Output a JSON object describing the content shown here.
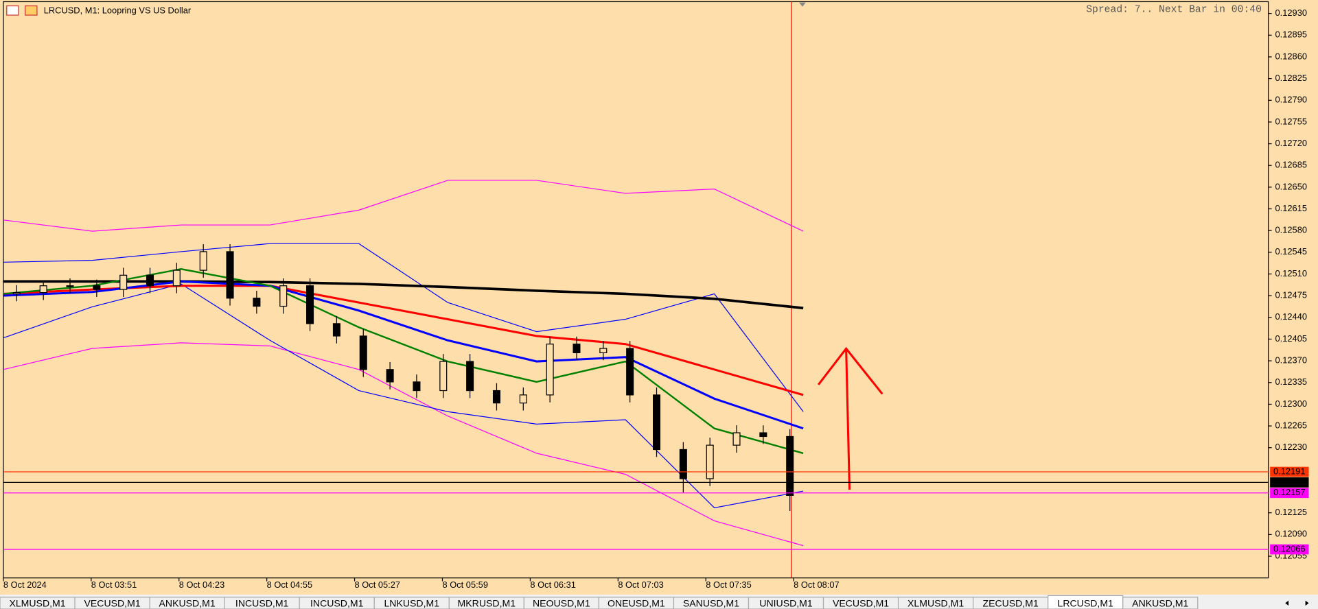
{
  "chart_data": {
    "type": "candlestick",
    "title": "LRCUSD, M1:  Loopring VS US Dollar",
    "status": "Spread: 7.. Next Bar in 00:40",
    "ylim": [
      0.1202,
      0.12949
    ],
    "yticks": [
      {
        "value": 0.1293,
        "label": "0.12930"
      },
      {
        "value": 0.12895,
        "label": "0.12895"
      },
      {
        "value": 0.1286,
        "label": "0.12860"
      },
      {
        "value": 0.12825,
        "label": "0.12825"
      },
      {
        "value": 0.1279,
        "label": "0.12790"
      },
      {
        "value": 0.12755,
        "label": "0.12755"
      },
      {
        "value": 0.1272,
        "label": "0.12720"
      },
      {
        "value": 0.12685,
        "label": "0.12685"
      },
      {
        "value": 0.1265,
        "label": "0.12650"
      },
      {
        "value": 0.12615,
        "label": "0.12615"
      },
      {
        "value": 0.1258,
        "label": "0.12580"
      },
      {
        "value": 0.12545,
        "label": "0.12545"
      },
      {
        "value": 0.1251,
        "label": "0.12510"
      },
      {
        "value": 0.12475,
        "label": "0.12475"
      },
      {
        "value": 0.1244,
        "label": "0.12440"
      },
      {
        "value": 0.12405,
        "label": "0.12405"
      },
      {
        "value": 0.1237,
        "label": "0.12370"
      },
      {
        "value": 0.12335,
        "label": "0.12335"
      },
      {
        "value": 0.123,
        "label": "0.12300"
      },
      {
        "value": 0.12265,
        "label": "0.12265"
      },
      {
        "value": 0.1223,
        "label": "0.12230"
      },
      {
        "value": 0.12125,
        "label": "0.12125"
      },
      {
        "value": 0.1209,
        "label": "0.12090"
      },
      {
        "value": 0.12055,
        "label": "0.12055"
      }
    ],
    "categories": [
      "8 Oct 2024",
      "8 Oct 03:51",
      "8 Oct 04:23",
      "8 Oct 04:55",
      "8 Oct 05:27",
      "8 Oct 05:59",
      "8 Oct 06:31",
      "8 Oct 07:03",
      "8 Oct 07:35",
      "8 Oct 08:07"
    ],
    "grid": false,
    "open": [
      0.12478,
      0.1248,
      0.12491,
      0.12491,
      0.12485,
      0.12508,
      0.12491,
      0.12516,
      0.12546,
      0.12471,
      0.12458,
      0.12491,
      0.1243,
      0.1241,
      0.12356,
      0.12336,
      0.12322,
      0.12369,
      0.12322,
      0.12302,
      0.12315,
      0.12397,
      0.12383,
      0.1239,
      0.12315,
      0.12227,
      0.1218,
      0.12234,
      0.12254,
      0.12248
    ],
    "high": [
      0.12492,
      0.12496,
      0.12503,
      0.12501,
      0.1252,
      0.1252,
      0.12528,
      0.12558,
      0.12558,
      0.12483,
      0.12503,
      0.12503,
      0.12442,
      0.12422,
      0.12368,
      0.12348,
      0.12381,
      0.12381,
      0.12334,
      0.12327,
      0.12409,
      0.12409,
      0.12402,
      0.12402,
      0.12327,
      0.12239,
      0.12246,
      0.12266,
      0.12266,
      0.1226
    ],
    "low": [
      0.12466,
      0.12468,
      0.12479,
      0.12473,
      0.12473,
      0.12479,
      0.12479,
      0.12504,
      0.12459,
      0.12446,
      0.12446,
      0.12418,
      0.12398,
      0.12344,
      0.12324,
      0.1231,
      0.1231,
      0.1231,
      0.1229,
      0.1229,
      0.12303,
      0.12371,
      0.12371,
      0.12303,
      0.12215,
      0.12158,
      0.12168,
      0.12222,
      0.12236,
      0.12128
    ],
    "close": [
      0.1248,
      0.12491,
      0.12491,
      0.12485,
      0.12508,
      0.12491,
      0.12516,
      0.12546,
      0.12471,
      0.12458,
      0.12491,
      0.1243,
      0.1241,
      0.12356,
      0.12336,
      0.12322,
      0.12369,
      0.12322,
      0.12302,
      0.12315,
      0.12397,
      0.12383,
      0.1239,
      0.12315,
      0.12227,
      0.1218,
      0.12234,
      0.12254,
      0.12248,
      0.12153
    ],
    "series": [
      {
        "color": "#ff00ff",
        "width": 1,
        "values": [
          0.12597,
          0.12579,
          0.12589,
          0.12589,
          0.12613,
          0.12661,
          0.12661,
          0.1264,
          0.12647,
          0.12579
        ]
      },
      {
        "color": "#ff00ff",
        "width": 1,
        "values": [
          0.12356,
          0.1239,
          0.12399,
          0.12394,
          0.12356,
          0.12281,
          0.12221,
          0.12187,
          0.12112,
          0.12072
        ]
      },
      {
        "color": "#0000ff",
        "width": 1,
        "values": [
          0.12529,
          0.12532,
          0.12546,
          0.12559,
          0.12559,
          0.12464,
          0.12417,
          0.12437,
          0.12478,
          0.12288
        ]
      },
      {
        "color": "#0000ff",
        "width": 1,
        "values": [
          0.12407,
          0.12457,
          0.12494,
          0.12403,
          0.12322,
          0.12288,
          0.12268,
          0.12275,
          0.12133,
          0.1216
        ]
      },
      {
        "color": "#000000",
        "width": 3,
        "values": [
          0.12498,
          0.12498,
          0.12498,
          0.12497,
          0.12494,
          0.12489,
          0.12483,
          0.12478,
          0.1247,
          0.12455
        ]
      },
      {
        "color": "#ff0000",
        "width": 2.5,
        "values": [
          0.12478,
          0.12485,
          0.12491,
          0.12491,
          0.12464,
          0.12437,
          0.1241,
          0.12397,
          0.12356,
          0.12315
        ]
      },
      {
        "color": "#0000ff",
        "width": 2.5,
        "values": [
          0.12475,
          0.12481,
          0.12498,
          0.12491,
          0.12451,
          0.12403,
          0.12369,
          0.12376,
          0.12309,
          0.12261
        ]
      },
      {
        "color": "#008000",
        "width": 2,
        "values": [
          0.12478,
          0.12491,
          0.12518,
          0.12491,
          0.12424,
          0.12369,
          0.12336,
          0.12369,
          0.12261,
          0.12221
        ]
      }
    ],
    "price_lines": [
      {
        "value": 0.12191,
        "color": "#ff3300",
        "text_color": "#000000"
      },
      {
        "value": 0.12174,
        "color": "#000000",
        "text_color": "#ffffff"
      },
      {
        "value": 0.12157,
        "color": "#ff00ff",
        "text_color": "#ffffff"
      },
      {
        "value": 0.12066,
        "color": "#ff00ff",
        "text_color": "#ffffff"
      }
    ],
    "tabs": [
      "XLMUSD,M1",
      "VECUSD,M1",
      "ANKUSD,M1",
      "INCUSD,M1",
      "INCUSD,M1",
      "LNKUSD,M1",
      "MKRUSD,M1",
      "NEOUSD,M1",
      "ONEUSD,M1",
      "SANUSD,M1",
      "UNIUSD,M1",
      "VECUSD,M1",
      "XLMUSD,M1",
      "ZECUSD,M1",
      "LRCUSD,M1",
      "ANKUSD,M1"
    ],
    "active_tab": 14
  }
}
